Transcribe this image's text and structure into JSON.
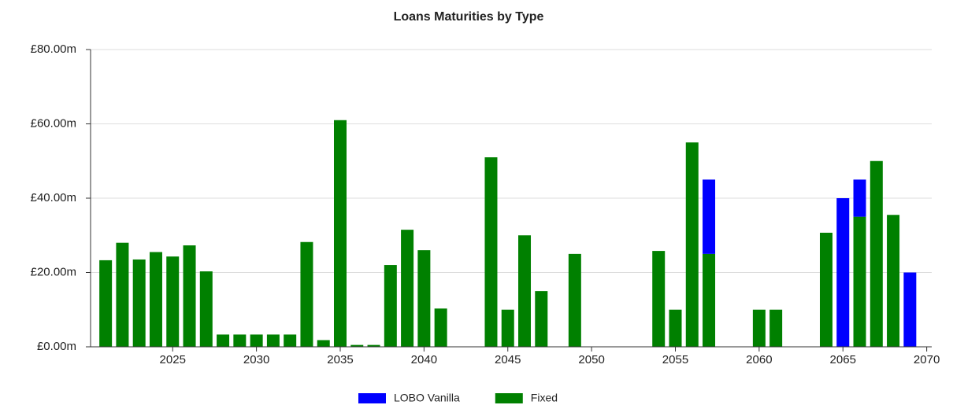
{
  "chart_data": {
    "type": "bar",
    "stacked": true,
    "title": "Loans Maturities by Type",
    "x": [
      2021,
      2022,
      2023,
      2024,
      2025,
      2026,
      2027,
      2028,
      2029,
      2030,
      2031,
      2032,
      2033,
      2034,
      2035,
      2036,
      2037,
      2038,
      2039,
      2040,
      2041,
      2044,
      2045,
      2046,
      2047,
      2049,
      2054,
      2055,
      2056,
      2057,
      2060,
      2061,
      2064,
      2065,
      2066,
      2067,
      2068,
      2069
    ],
    "series": [
      {
        "name": "LOBO Vanilla",
        "color": "#0000ff",
        "values": [
          null,
          null,
          null,
          null,
          null,
          null,
          null,
          null,
          null,
          null,
          null,
          null,
          null,
          null,
          null,
          null,
          null,
          null,
          null,
          null,
          null,
          null,
          null,
          null,
          null,
          null,
          null,
          null,
          null,
          20,
          null,
          null,
          null,
          40,
          10,
          null,
          null,
          20
        ]
      },
      {
        "name": "Fixed",
        "color": "#008000",
        "values": [
          23.3,
          28,
          23.5,
          25.5,
          24.3,
          27.3,
          20.3,
          3.3,
          3.3,
          3.3,
          3.3,
          3.3,
          28.2,
          1.8,
          61,
          0.5,
          0.5,
          22,
          31.5,
          26,
          10.3,
          51,
          10,
          30,
          15,
          25,
          25.8,
          10,
          55,
          25,
          10,
          10,
          30.7,
          null,
          35,
          50,
          35.5,
          null
        ]
      }
    ],
    "xlim": [
      2020.1,
      2070.3
    ],
    "xticks": [
      2025,
      2030,
      2035,
      2040,
      2045,
      2050,
      2055,
      2060,
      2065,
      2070
    ],
    "ylim": [
      0,
      80
    ],
    "yticks": [
      {
        "value": 0,
        "label": "£0.00m"
      },
      {
        "value": 20,
        "label": "£20.00m"
      },
      {
        "value": 40,
        "label": "£40.00m"
      },
      {
        "value": 60,
        "label": "£60.00m"
      },
      {
        "value": 80,
        "label": "£80.00m"
      }
    ],
    "grid": true,
    "legend": "bottom"
  }
}
